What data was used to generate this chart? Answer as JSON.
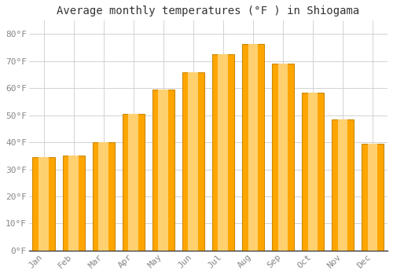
{
  "title": "Average monthly temperatures (°F ) in Shiogama",
  "months": [
    "Jan",
    "Feb",
    "Mar",
    "Apr",
    "May",
    "Jun",
    "Jul",
    "Aug",
    "Sep",
    "Oct",
    "Nov",
    "Dec"
  ],
  "values": [
    34.5,
    35.0,
    40.0,
    50.5,
    59.5,
    66.0,
    72.5,
    76.5,
    69.0,
    58.5,
    48.5,
    39.5
  ],
  "bar_color": "#FFA500",
  "bar_edge_color": "#CC8800",
  "background_color": "#FFFFFF",
  "grid_color": "#CCCCCC",
  "ylim": [
    0,
    85
  ],
  "yticks": [
    0,
    10,
    20,
    30,
    40,
    50,
    60,
    70,
    80
  ],
  "ytick_labels": [
    "0°F",
    "10°F",
    "20°F",
    "30°F",
    "40°F",
    "50°F",
    "60°F",
    "70°F",
    "80°F"
  ],
  "title_fontsize": 10,
  "tick_fontsize": 8,
  "font_family": "monospace"
}
